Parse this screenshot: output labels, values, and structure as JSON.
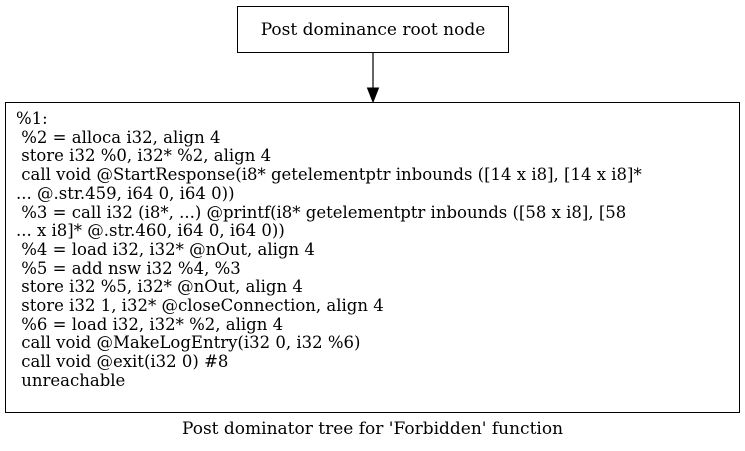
{
  "diagram": {
    "root_node": {
      "label": "Post dominance root node"
    },
    "block_node": {
      "lines": [
        "%1:",
        " %2 = alloca i32, align 4",
        " store i32 %0, i32* %2, align 4",
        " call void @StartResponse(i8* getelementptr inbounds ([14 x i8], [14 x i8]*",
        "... @.str.459, i64 0, i64 0))",
        " %3 = call i32 (i8*, ...) @printf(i8* getelementptr inbounds ([58 x i8], [58",
        "... x i8]* @.str.460, i64 0, i64 0))",
        " %4 = load i32, i32* @nOut, align 4",
        " %5 = add nsw i32 %4, %3",
        " store i32 %5, i32* @nOut, align 4",
        " store i32 1, i32* @closeConnection, align 4",
        " %6 = load i32, i32* %2, align 4",
        " call void @MakeLogEntry(i32 0, i32 %6)",
        " call void @exit(i32 0) #8",
        " unreachable"
      ]
    },
    "caption": "Post dominator tree for 'Forbidden' function",
    "colors": {
      "stroke": "#000000",
      "background": "#ffffff"
    }
  }
}
